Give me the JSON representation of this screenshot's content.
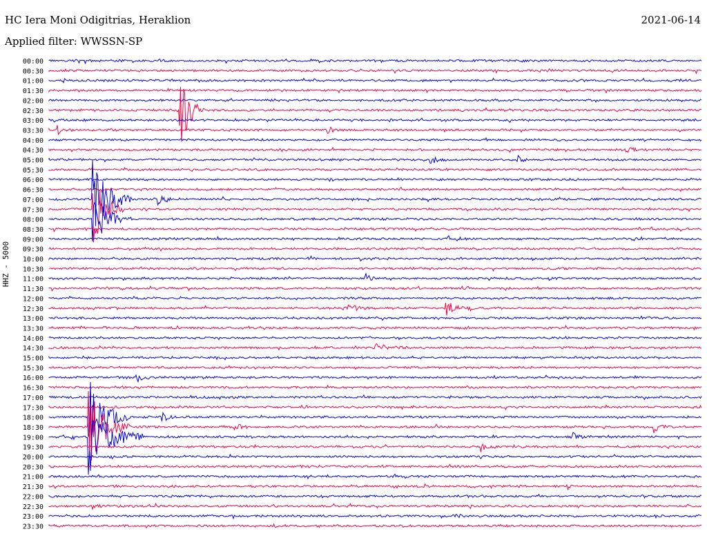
{
  "header": {
    "station": "HC Iera Moni Odigitrias, Heraklion",
    "date": "2021-06-14",
    "filter": "Applied filter: WWSSN-SP"
  },
  "chart_data": {
    "type": "seismogram",
    "channel_label": "HHZ - 5000",
    "colors": {
      "even": "#0000dd",
      "odd": "#ee0044"
    },
    "rows": [
      "00:00",
      "00:30",
      "01:00",
      "01:30",
      "02:00",
      "02:30",
      "03:00",
      "03:30",
      "04:00",
      "04:30",
      "05:00",
      "05:30",
      "06:00",
      "06:30",
      "07:00",
      "07:30",
      "08:00",
      "08:30",
      "09:00",
      "09:30",
      "10:00",
      "10:30",
      "11:00",
      "11:30",
      "12:00",
      "12:30",
      "13:00",
      "13:30",
      "14:00",
      "14:30",
      "15:00",
      "15:30",
      "16:00",
      "16:30",
      "17:00",
      "17:30",
      "18:00",
      "18:30",
      "19:00",
      "19:30",
      "20:00",
      "20:30",
      "21:00",
      "21:30",
      "22:00",
      "22:30",
      "23:00",
      "23:30"
    ],
    "events": [
      {
        "row": "02:30",
        "minute": 6.0,
        "amp": 60,
        "dur": 1.2
      },
      {
        "row": "07:00",
        "minute": 2.0,
        "amp": 70,
        "dur": 1.8
      },
      {
        "row": "07:30",
        "minute": 2.0,
        "amp": 60,
        "dur": 1.5
      },
      {
        "row": "08:00",
        "minute": 2.0,
        "amp": 40,
        "dur": 1.8
      },
      {
        "row": "18:00",
        "minute": 1.8,
        "amp": 60,
        "dur": 2.0
      },
      {
        "row": "18:30",
        "minute": 1.8,
        "amp": 60,
        "dur": 2.0
      },
      {
        "row": "19:00",
        "minute": 1.8,
        "amp": 60,
        "dur": 2.5
      },
      {
        "row": "03:30",
        "minute": 0.3,
        "amp": 8,
        "dur": 0.8
      },
      {
        "row": "03:30",
        "minute": 12.8,
        "amp": 6,
        "dur": 1.0
      },
      {
        "row": "04:30",
        "minute": 26.5,
        "amp": 5,
        "dur": 1.0
      },
      {
        "row": "05:00",
        "minute": 17.5,
        "amp": 9,
        "dur": 0.8
      },
      {
        "row": "05:00",
        "minute": 21.5,
        "amp": 7,
        "dur": 0.6
      },
      {
        "row": "07:00",
        "minute": 5.0,
        "amp": 8,
        "dur": 1.0
      },
      {
        "row": "09:00",
        "minute": 18.3,
        "amp": 7,
        "dur": 1.0
      },
      {
        "row": "11:00",
        "minute": 14.5,
        "amp": 7,
        "dur": 0.8
      },
      {
        "row": "12:30",
        "minute": 18.2,
        "amp": 12,
        "dur": 1.5
      },
      {
        "row": "12:30",
        "minute": 13.5,
        "amp": 7,
        "dur": 1.5
      },
      {
        "row": "14:30",
        "minute": 15.0,
        "amp": 7,
        "dur": 1.5
      },
      {
        "row": "16:00",
        "minute": 4.0,
        "amp": 7,
        "dur": 0.8
      },
      {
        "row": "18:00",
        "minute": 5.1,
        "amp": 10,
        "dur": 0.8
      },
      {
        "row": "18:30",
        "minute": 8.5,
        "amp": 8,
        "dur": 0.6
      },
      {
        "row": "18:30",
        "minute": 27.8,
        "amp": 8,
        "dur": 1.0
      },
      {
        "row": "19:00",
        "minute": 24.0,
        "amp": 7,
        "dur": 1.0
      },
      {
        "row": "19:30",
        "minute": 19.8,
        "amp": 12,
        "dur": 0.8
      },
      {
        "row": "21:30",
        "minute": 23.8,
        "amp": 5,
        "dur": 0.6
      },
      {
        "row": "22:30",
        "minute": 2.0,
        "amp": 6,
        "dur": 0.8
      },
      {
        "row": "23:00",
        "minute": 18.5,
        "amp": 5,
        "dur": 1.0
      }
    ]
  }
}
